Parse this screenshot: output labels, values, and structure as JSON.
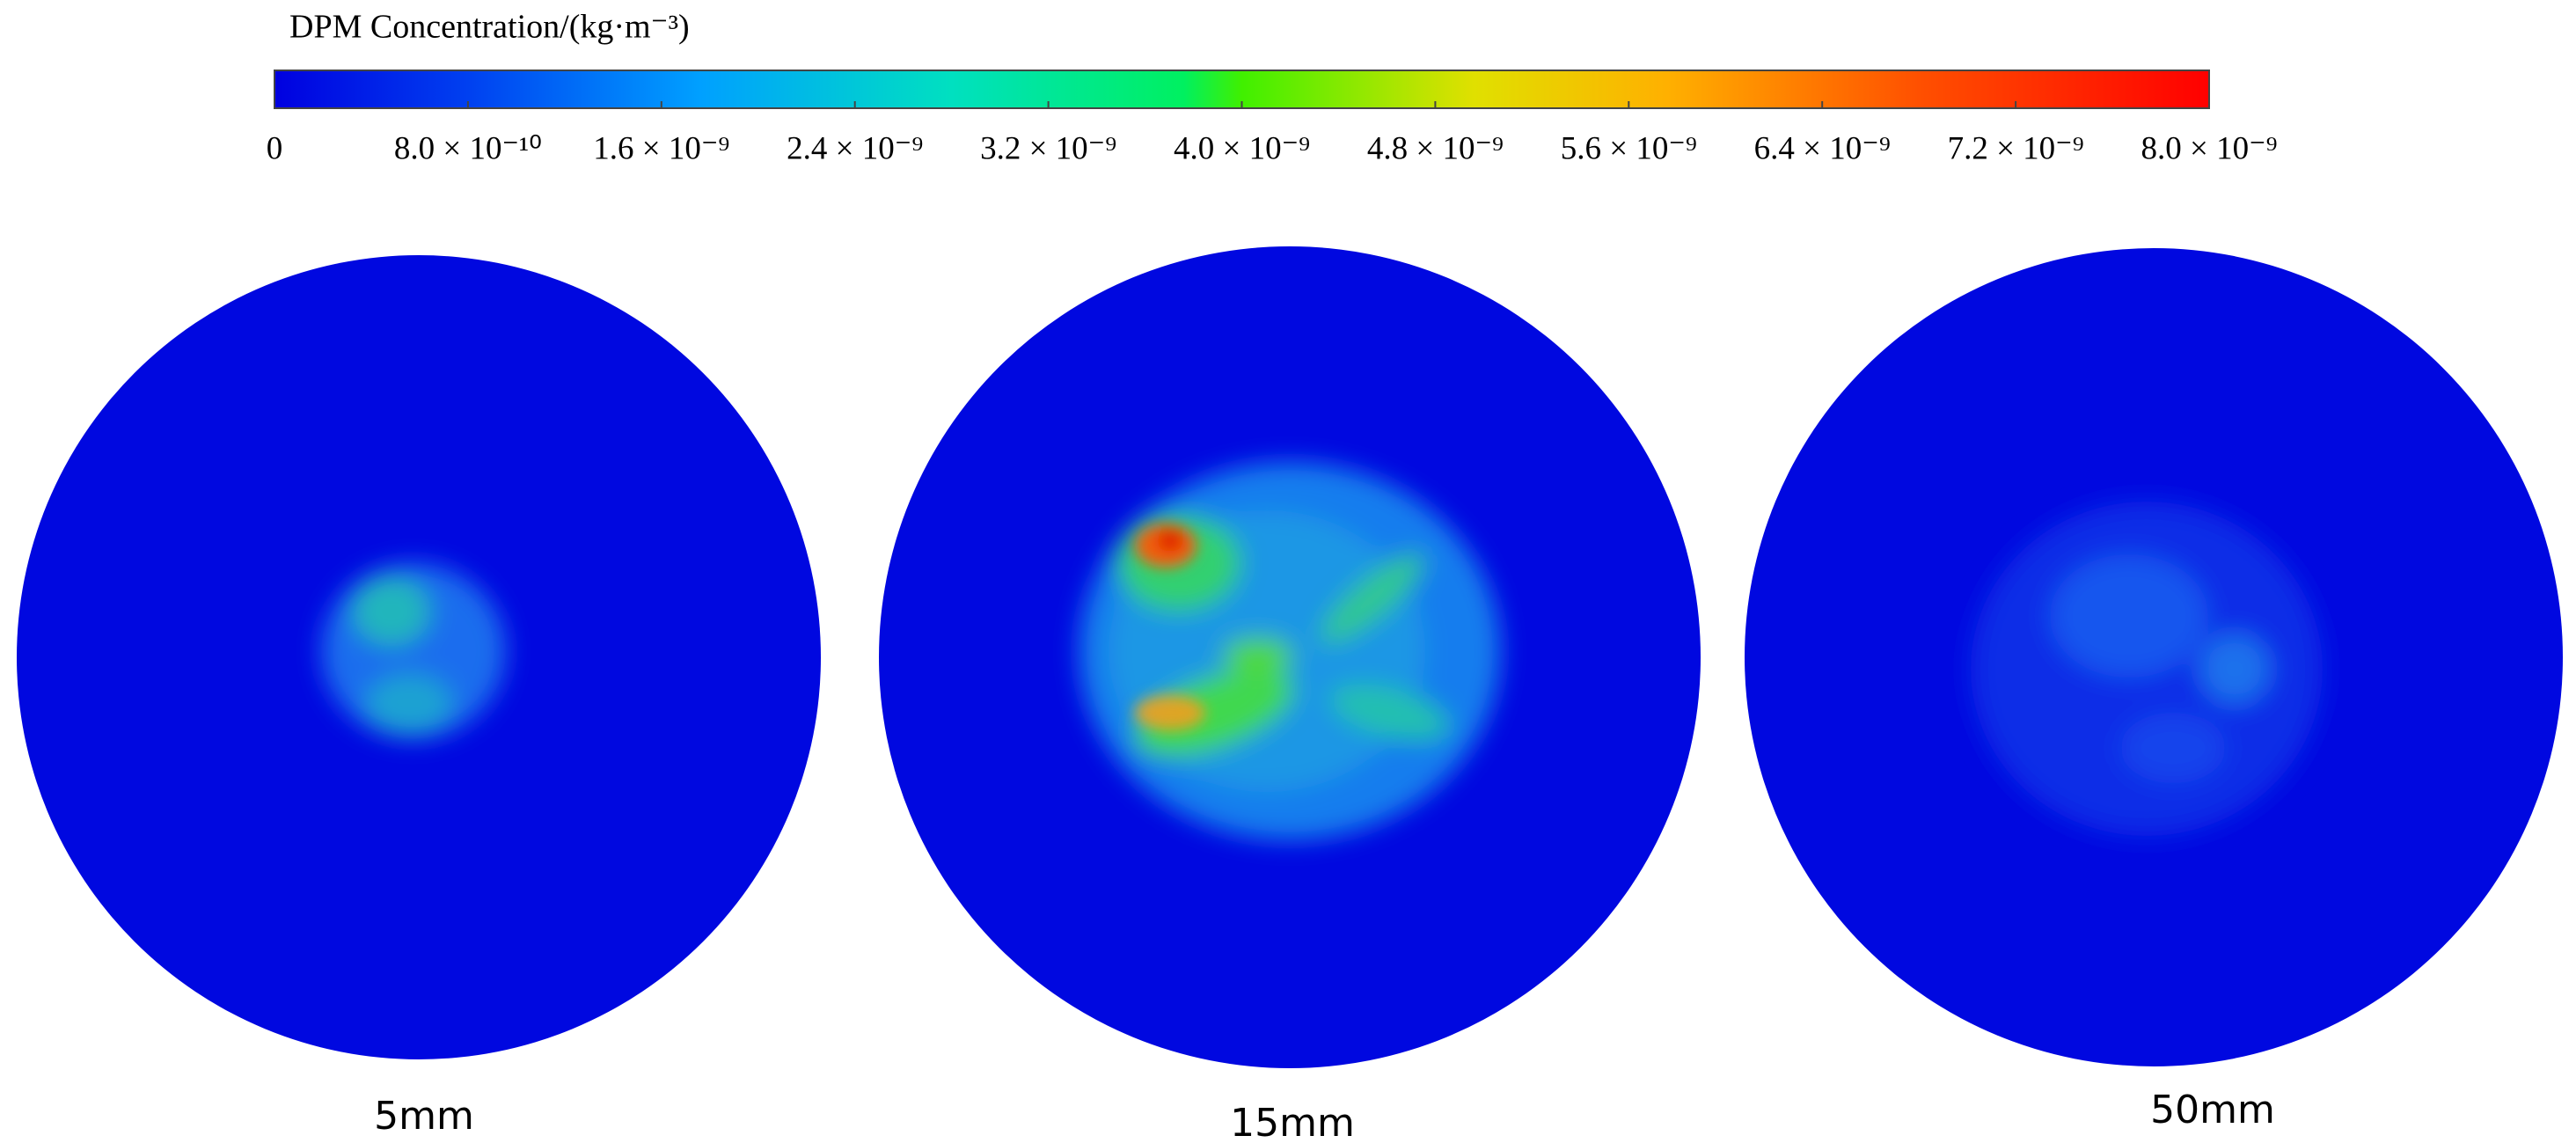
{
  "colorbar": {
    "title": "DPM Concentration/(kg·m⁻³)",
    "lim": [
      0,
      8e-09
    ],
    "ticks": [
      0,
      {
        "value": 8e-10,
        "label": "8.0 × 10⁻¹⁰"
      },
      {
        "value": 1.6e-09,
        "label": "1.6 × 10⁻⁹"
      },
      {
        "value": 2.4e-09,
        "label": "2.4 × 10⁻⁹"
      },
      {
        "value": 3.2e-09,
        "label": "3.2 × 10⁻⁹"
      },
      {
        "value": 4e-09,
        "label": "4.0 × 10⁻⁹"
      },
      {
        "value": 4.8e-09,
        "label": "4.8 × 10⁻⁹"
      },
      {
        "value": 5.6e-09,
        "label": "5.6 × 10⁻⁹"
      },
      {
        "value": 6.4e-09,
        "label": "6.4 × 10⁻⁹"
      },
      {
        "value": 7.2e-09,
        "label": "7.2 × 10⁻⁹"
      },
      {
        "value": 8e-09,
        "label": "8.0 × 10⁻⁹"
      }
    ]
  },
  "panels": [
    {
      "label": "5mm"
    },
    {
      "label": "15mm"
    },
    {
      "label": "50mm"
    }
  ]
}
